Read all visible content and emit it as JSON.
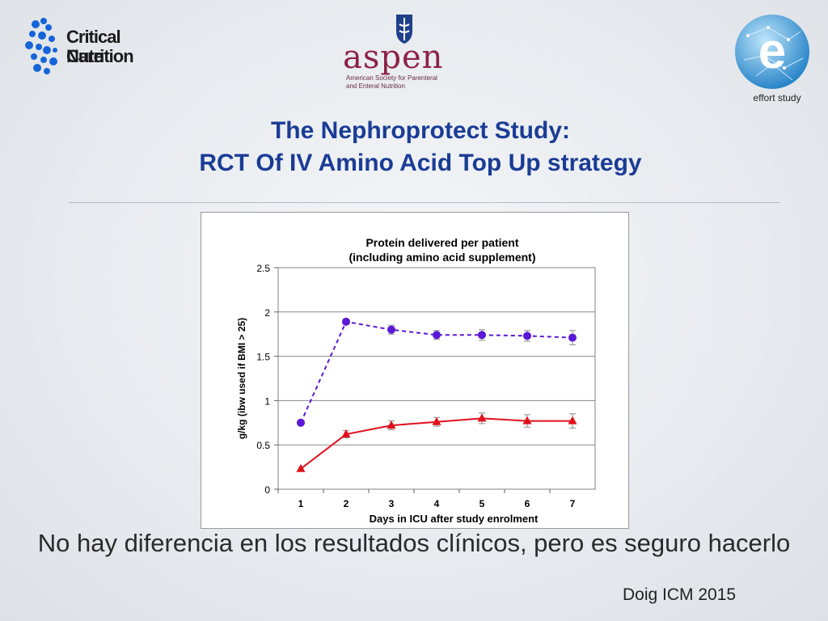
{
  "logos": {
    "ccn": {
      "line1": "Critical Care",
      "line2": "Nutrition",
      "icon": "dna-helix-icon"
    },
    "aspen": {
      "word": "aspen",
      "subtitle_line1": "American Society for Parenteral",
      "subtitle_line2": "and Enteral Nutrition",
      "icon": "shield-crest-icon"
    },
    "effort": {
      "label": "effort study",
      "icon": "globe-e-icon"
    }
  },
  "slide": {
    "title_line1": "The Nephroprotect Study:",
    "title_line2": "RCT Of IV Amino Acid Top Up strategy",
    "conclusion": "No hay diferencia en los resultados clínicos, pero es seguro hacerlo",
    "citation": "Doig ICM 2015"
  },
  "colors": {
    "title": "#1a3c95",
    "series_purple": "#5b18d6",
    "series_red": "#e0101c"
  },
  "chart_data": {
    "type": "line",
    "title_line1": "Protein delivered per patient",
    "title_line2": "(including amino acid supplement)",
    "xlabel": "Days in ICU after study enrolment",
    "ylabel": "g/kg (ibw used if BMI > 25)",
    "x": [
      1,
      2,
      3,
      4,
      5,
      6,
      7
    ],
    "x_ticks": [
      "1",
      "2",
      "3",
      "4",
      "5",
      "6",
      "7"
    ],
    "ylim": [
      0,
      2.5
    ],
    "y_ticks": [
      "0",
      "0.5",
      "1",
      "1.5",
      "2",
      "2.5"
    ],
    "grid": true,
    "legend": "none",
    "series": [
      {
        "values": [
          0.75,
          1.89,
          1.8,
          1.74,
          1.74,
          1.73,
          1.71
        ],
        "errors": [
          0.0,
          0.03,
          0.05,
          0.05,
          0.06,
          0.06,
          0.08
        ],
        "color": "#5b18d6",
        "marker": "circle",
        "line_style": "dashed"
      },
      {
        "values": [
          0.23,
          0.62,
          0.72,
          0.76,
          0.8,
          0.77,
          0.77
        ],
        "errors": [
          0.0,
          0.04,
          0.05,
          0.05,
          0.06,
          0.07,
          0.08
        ],
        "color": "#e0101c",
        "marker": "triangle",
        "line_style": "solid"
      }
    ]
  }
}
